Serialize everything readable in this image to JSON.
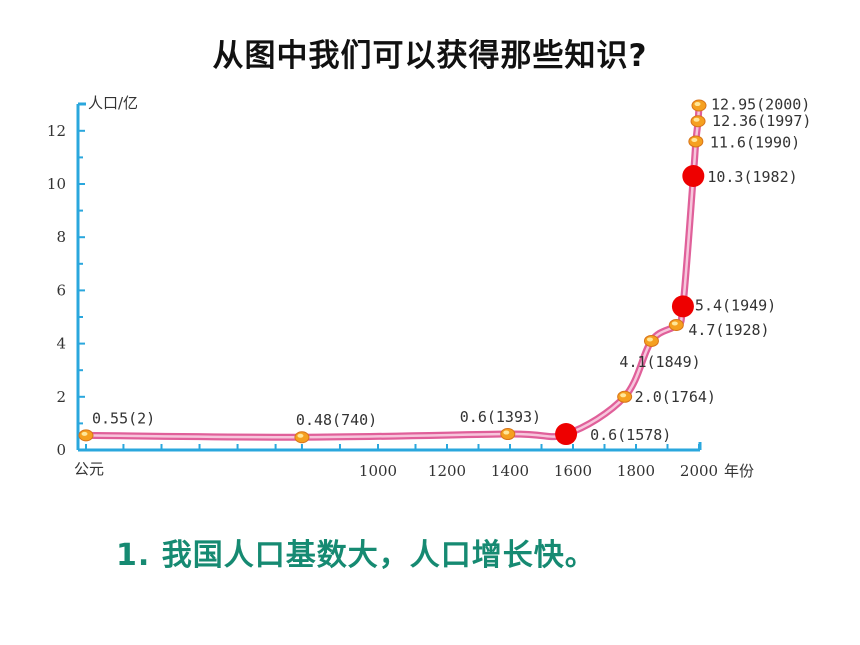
{
  "title": "从图中我们可以获得那些知识?",
  "conclusion": "1. 我国人口基数大，人口增长快。",
  "colors": {
    "axis": "#2aa7dd",
    "curve_outer": "#e0609a",
    "curve_inner": "#f7c6dc",
    "point": "#f5a020",
    "highlight": "#ee0000",
    "conclusion": "#168a72"
  },
  "chart_data": {
    "type": "line",
    "ylabel": "人口/亿",
    "xlabel": "年份",
    "x_origin_label": "公元",
    "y_ticks": [
      "0",
      "2",
      "4",
      "6",
      "8",
      "10",
      "12"
    ],
    "ylim": [
      0,
      13.5
    ],
    "x_ticks": [
      "1000",
      "1200",
      "1400",
      "1600",
      "1800",
      "2000"
    ],
    "series": [
      {
        "points": [
          {
            "year": 2,
            "value": 0.55,
            "label": "0.55(2)"
          },
          {
            "year": 740,
            "value": 0.48,
            "label": "0.48(740)"
          },
          {
            "year": 1393,
            "value": 0.6,
            "label": "0.6(1393)"
          },
          {
            "year": 1578,
            "value": 0.6,
            "label": "0.6(1578)"
          },
          {
            "year": 1764,
            "value": 2.0,
            "label": "2.0(1764)"
          },
          {
            "year": 1849,
            "value": 4.1,
            "label": "4.1(1849)"
          },
          {
            "year": 1928,
            "value": 4.7,
            "label": "4.7(1928)"
          },
          {
            "year": 1949,
            "value": 5.4,
            "label": "5.4(1949)"
          },
          {
            "year": 1982,
            "value": 10.3,
            "label": "10.3(1982)"
          },
          {
            "year": 1990,
            "value": 11.6,
            "label": "11.6(1990)"
          },
          {
            "year": 1997,
            "value": 12.36,
            "label": "12.36(1997)"
          },
          {
            "year": 2000,
            "value": 12.95,
            "label": "12.95(2000)"
          }
        ]
      }
    ],
    "highlighted_years": [
      1578,
      1949,
      1982
    ]
  }
}
